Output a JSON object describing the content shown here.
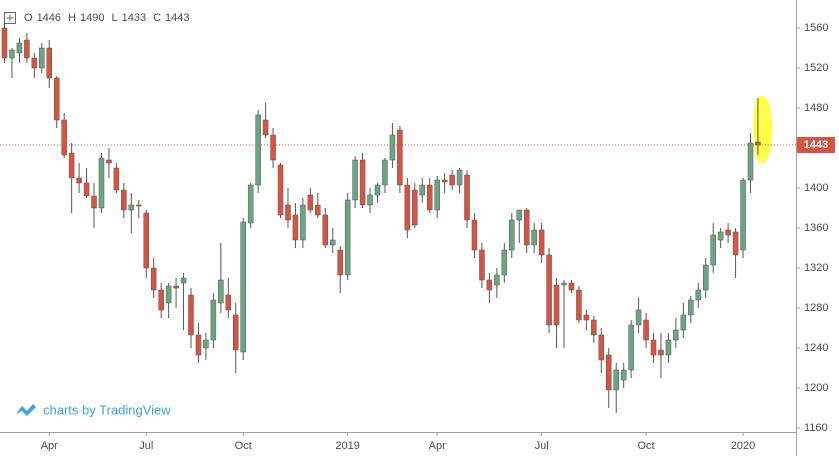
{
  "chart_data": {
    "type": "candlestick",
    "ohlc_labels": [
      "O",
      "H",
      "L",
      "C"
    ],
    "watermark": "charts by TradingView",
    "categories": [
      null,
      null,
      null,
      null,
      null,
      null,
      "Apr",
      null,
      null,
      null,
      null,
      null,
      null,
      null,
      null,
      null,
      null,
      null,
      null,
      "Jul",
      null,
      null,
      null,
      null,
      null,
      null,
      null,
      null,
      null,
      null,
      null,
      null,
      "Oct",
      null,
      null,
      null,
      null,
      null,
      null,
      null,
      null,
      null,
      null,
      null,
      null,
      null,
      "2019",
      null,
      null,
      null,
      null,
      null,
      null,
      null,
      null,
      null,
      null,
      null,
      "Apr",
      null,
      null,
      null,
      null,
      null,
      null,
      null,
      null,
      null,
      null,
      null,
      null,
      null,
      "Jul",
      null,
      null,
      null,
      null,
      null,
      null,
      null,
      null,
      null,
      null,
      null,
      null,
      null,
      "Oct",
      null,
      null,
      null,
      null,
      null,
      null,
      null,
      null,
      null,
      null,
      null,
      null,
      "2020",
      null,
      null
    ],
    "open": [
      1560,
      1530,
      1535,
      1548,
      1530,
      1520,
      1540,
      1510,
      1468,
      1435,
      1410,
      1405,
      1392,
      1380,
      1428,
      1420,
      1398,
      1378,
      1383,
      1375,
      1320,
      1298,
      1285,
      1302,
      1305,
      1293,
      1253,
      1240,
      1248,
      1285,
      1293,
      1273,
      1236,
      1365,
      1403,
      1468,
      1453,
      1423,
      1383,
      1373,
      1348,
      1393,
      1383,
      1373,
      1343,
      1338,
      1313,
      1388,
      1428,
      1383,
      1393,
      1403,
      1428,
      1458,
      1403,
      1398,
      1393,
      1403,
      1378,
      1408,
      1413,
      1403,
      1413,
      1368,
      1338,
      1308,
      1303,
      1313,
      1338,
      1368,
      1378,
      1343,
      1358,
      1333,
      1303,
      1303,
      1305,
      1298,
      1273,
      1268,
      1253,
      1233,
      1198,
      1208,
      1218,
      1263,
      1268,
      1248,
      1238,
      1233,
      1248,
      1258,
      1273,
      1288,
      1298,
      1323,
      1348,
      1358,
      1356,
      1338,
      1408,
      1446
    ],
    "high": [
      1565,
      1540,
      1550,
      1555,
      1535,
      1545,
      1548,
      1512,
      1475,
      1445,
      1425,
      1420,
      1405,
      1435,
      1440,
      1425,
      1405,
      1395,
      1388,
      1378,
      1330,
      1305,
      1305,
      1310,
      1315,
      1300,
      1265,
      1255,
      1295,
      1345,
      1310,
      1285,
      1370,
      1405,
      1478,
      1485,
      1460,
      1425,
      1400,
      1385,
      1390,
      1400,
      1395,
      1380,
      1360,
      1342,
      1395,
      1432,
      1435,
      1400,
      1405,
      1430,
      1465,
      1462,
      1410,
      1405,
      1410,
      1410,
      1412,
      1415,
      1418,
      1420,
      1418,
      1375,
      1345,
      1315,
      1320,
      1345,
      1375,
      1378,
      1380,
      1365,
      1365,
      1340,
      1310,
      1308,
      1308,
      1302,
      1278,
      1272,
      1260,
      1240,
      1225,
      1225,
      1268,
      1290,
      1275,
      1255,
      1255,
      1255,
      1270,
      1285,
      1292,
      1305,
      1330,
      1365,
      1360,
      1365,
      1360,
      1410,
      1455,
      1490
    ],
    "low": [
      1525,
      1510,
      1525,
      1525,
      1510,
      1515,
      1500,
      1460,
      1430,
      1375,
      1395,
      1390,
      1360,
      1375,
      1410,
      1395,
      1370,
      1355,
      1370,
      1310,
      1290,
      1270,
      1270,
      1280,
      1258,
      1240,
      1225,
      1228,
      1240,
      1275,
      1270,
      1215,
      1228,
      1360,
      1395,
      1450,
      1420,
      1370,
      1360,
      1340,
      1340,
      1375,
      1370,
      1340,
      1335,
      1295,
      1308,
      1380,
      1380,
      1375,
      1385,
      1395,
      1420,
      1395,
      1350,
      1360,
      1385,
      1375,
      1370,
      1395,
      1398,
      1395,
      1360,
      1330,
      1300,
      1285,
      1290,
      1305,
      1330,
      1345,
      1335,
      1335,
      1325,
      1255,
      1240,
      1240,
      1295,
      1265,
      1258,
      1245,
      1215,
      1180,
      1175,
      1200,
      1210,
      1255,
      1240,
      1225,
      1210,
      1225,
      1240,
      1250,
      1265,
      1280,
      1290,
      1315,
      1340,
      1345,
      1310,
      1330,
      1395,
      1433
    ],
    "close": [
      1530,
      1538,
      1545,
      1530,
      1520,
      1540,
      1510,
      1468,
      1433,
      1410,
      1405,
      1392,
      1380,
      1430,
      1425,
      1398,
      1378,
      1383,
      1382,
      1320,
      1298,
      1278,
      1302,
      1300,
      1310,
      1253,
      1233,
      1248,
      1288,
      1308,
      1278,
      1238,
      1366,
      1403,
      1473,
      1453,
      1428,
      1373,
      1368,
      1348,
      1383,
      1378,
      1373,
      1343,
      1348,
      1313,
      1388,
      1428,
      1383,
      1393,
      1403,
      1428,
      1453,
      1403,
      1358,
      1363,
      1403,
      1378,
      1408,
      1406,
      1403,
      1418,
      1368,
      1338,
      1308,
      1298,
      1313,
      1338,
      1368,
      1378,
      1343,
      1358,
      1333,
      1263,
      1263,
      1305,
      1298,
      1268,
      1268,
      1253,
      1228,
      1198,
      1218,
      1218,
      1263,
      1278,
      1248,
      1233,
      1233,
      1248,
      1258,
      1273,
      1288,
      1298,
      1323,
      1353,
      1356,
      1353,
      1333,
      1408,
      1445,
      1443
    ],
    "up_color": "#6ba583",
    "down_color": "#d75442",
    "ylim": [
      1156,
      1588
    ],
    "yticks": [
      1160,
      1200,
      1240,
      1280,
      1320,
      1360,
      1400,
      1440,
      1480,
      1520,
      1560
    ],
    "grid": false
  }
}
